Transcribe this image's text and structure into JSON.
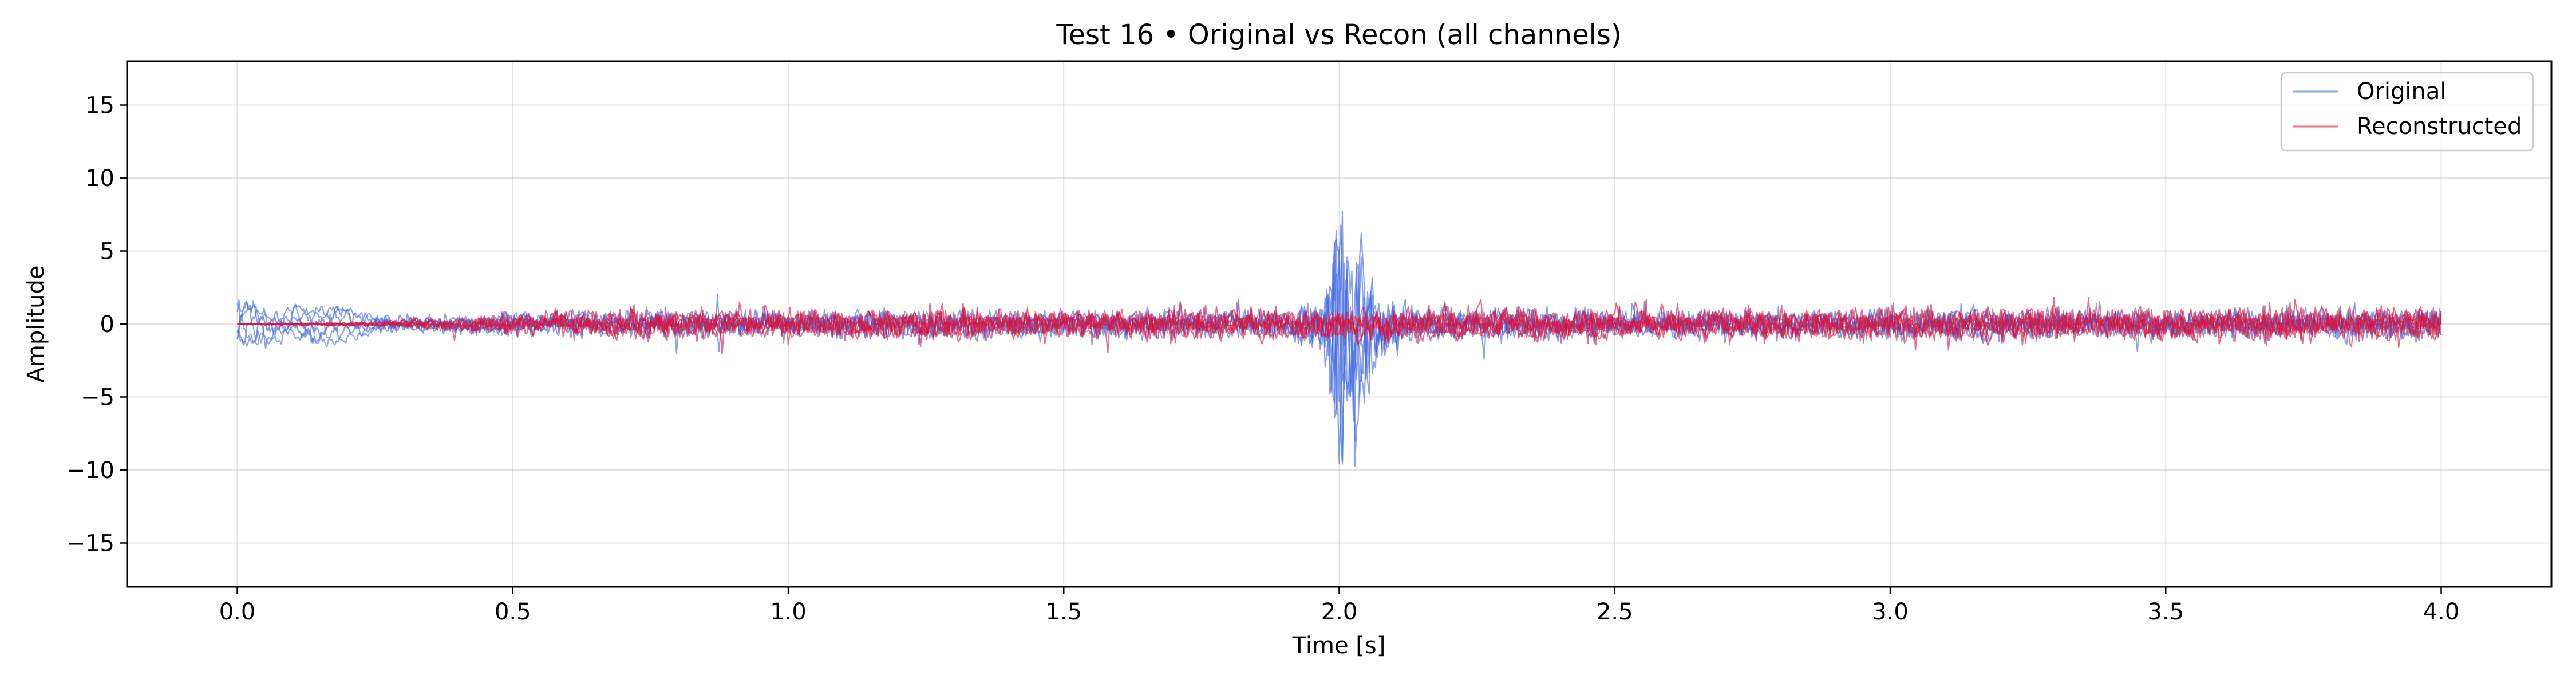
{
  "chart_data": {
    "type": "line",
    "title": "Test 16 • Original vs Recon (all channels)",
    "xlabel": "Time [s]",
    "ylabel": "Amplitude",
    "xlim": [
      -0.2,
      4.2
    ],
    "ylim": [
      -18,
      18
    ],
    "x_ticks": [
      0.0,
      0.5,
      1.0,
      1.5,
      2.0,
      2.5,
      3.0,
      3.5,
      4.0
    ],
    "x_tick_labels": [
      "0.0",
      "0.5",
      "1.0",
      "1.5",
      "2.0",
      "2.5",
      "3.0",
      "3.5",
      "4.0"
    ],
    "y_ticks": [
      -15,
      -10,
      -5,
      0,
      5,
      10,
      15
    ],
    "y_tick_labels": [
      "−15",
      "−10",
      "−5",
      "0",
      "5",
      "10",
      "15"
    ],
    "grid": true,
    "legend_position": "top-right",
    "time_range": [
      0.0,
      4.0
    ],
    "channels": 6,
    "series": [
      {
        "name": "Original",
        "color": "#4169e1",
        "envelope_breakpoints": [
          [
            0.0,
            2.3
          ],
          [
            0.3,
            0.7
          ],
          [
            0.5,
            1.3
          ],
          [
            1.0,
            1.4
          ],
          [
            1.9,
            1.4
          ],
          [
            1.97,
            2.6
          ],
          [
            2.0,
            16.5
          ],
          [
            2.03,
            10.0
          ],
          [
            2.08,
            3.2
          ],
          [
            2.15,
            1.5
          ],
          [
            4.0,
            1.5
          ]
        ]
      },
      {
        "name": "Reconstructed",
        "color": "#dc143c",
        "envelope_breakpoints": [
          [
            0.0,
            0.05
          ],
          [
            0.25,
            0.25
          ],
          [
            0.55,
            1.2
          ],
          [
            0.6,
            1.5
          ],
          [
            2.3,
            1.6
          ],
          [
            4.0,
            1.7
          ]
        ]
      }
    ]
  }
}
